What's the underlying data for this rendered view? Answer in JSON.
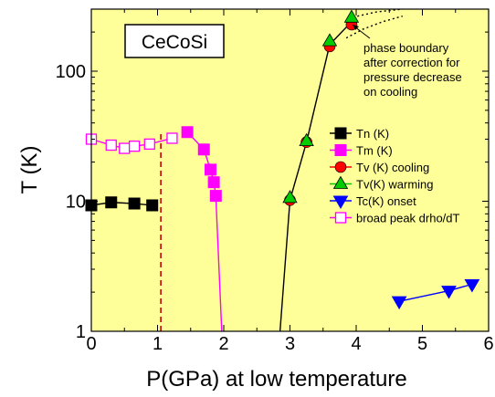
{
  "chart_data": {
    "type": "scatter",
    "inset_label": "CeCoSi",
    "xlabel": "P(GPa) at low temperature",
    "ylabel": "T (K)",
    "xlim": [
      0,
      6
    ],
    "ylim": [
      1,
      300
    ],
    "yscale": "log",
    "x_ticks": [
      0,
      1,
      2,
      3,
      4,
      5,
      6
    ],
    "y_ticks": [
      1,
      10,
      100
    ],
    "grid": false,
    "legend_position": "right",
    "background": "#ffff99",
    "annotation": {
      "lines": [
        "phase boundary",
        "after correction for",
        "pressure decrease",
        "on cooling"
      ]
    },
    "reference_line": {
      "x": 1.05,
      "color": "#cc0000",
      "style": "dashed"
    },
    "series": [
      {
        "name": "Tn (K)",
        "color": "#000000",
        "marker": "square-filled",
        "points": [
          [
            0.0,
            9.3
          ],
          [
            0.3,
            9.8
          ],
          [
            0.65,
            9.6
          ],
          [
            0.92,
            9.3
          ]
        ]
      },
      {
        "name": "Tm (K)",
        "color": "#ff00ff",
        "marker": "square-filled",
        "points": [
          [
            1.45,
            34.0
          ],
          [
            1.7,
            25.0
          ],
          [
            1.8,
            17.5
          ],
          [
            1.85,
            14.0
          ],
          [
            1.88,
            11.0
          ],
          [
            1.97,
            1.0
          ]
        ]
      },
      {
        "name": "Tv (K) cooling",
        "color": "#ff0000",
        "marker": "circle-filled",
        "points": [
          [
            3.0,
            10.2
          ],
          [
            3.25,
            28.5
          ],
          [
            3.6,
            155.0
          ],
          [
            3.93,
            228.0
          ]
        ]
      },
      {
        "name": "Tv(K) warming",
        "color": "#00cc00",
        "marker": "triangle-up-filled",
        "points": [
          [
            3.0,
            10.6
          ],
          [
            3.25,
            29.0
          ],
          [
            3.6,
            170.0
          ],
          [
            3.93,
            258.0
          ]
        ]
      },
      {
        "name": "Tc(K) onset",
        "color": "#0000ff",
        "marker": "triangle-down-filled",
        "points": [
          [
            4.65,
            1.7
          ],
          [
            5.4,
            2.05
          ],
          [
            5.75,
            2.3
          ]
        ]
      },
      {
        "name": "broad peak drho/dT",
        "color": "#ff00ff",
        "marker": "square-open",
        "points": [
          [
            0.0,
            30.0
          ],
          [
            0.3,
            27.0
          ],
          [
            0.5,
            25.5
          ],
          [
            0.65,
            26.5
          ],
          [
            0.88,
            27.5
          ],
          [
            1.22,
            30.5
          ]
        ]
      }
    ],
    "dotted_boundaries": [
      {
        "color": "#000000",
        "points": [
          [
            3.85,
            180.0
          ],
          [
            4.1,
            210.0
          ],
          [
            4.4,
            240.0
          ],
          [
            4.7,
            265.0
          ]
        ]
      },
      {
        "color": "#000000",
        "points": [
          [
            3.95,
            260.0
          ],
          [
            4.3,
            285.0
          ],
          [
            4.7,
            300.0
          ]
        ]
      }
    ],
    "solid_connectors": [
      {
        "color": "#000000",
        "points": [
          [
            2.85,
            1.0
          ],
          [
            3.0,
            10.2
          ],
          [
            3.25,
            28.5
          ],
          [
            3.6,
            160.0
          ],
          [
            3.93,
            240.0
          ]
        ]
      },
      {
        "color": "#ff00ff",
        "points": [
          [
            1.45,
            34.0
          ],
          [
            1.7,
            25.0
          ],
          [
            1.8,
            17.5
          ],
          [
            1.85,
            14.0
          ],
          [
            1.88,
            11.0
          ],
          [
            1.97,
            1.0
          ]
        ]
      },
      {
        "color": "#0000ff",
        "points": [
          [
            4.65,
            1.7
          ],
          [
            5.4,
            2.05
          ],
          [
            5.75,
            2.3
          ]
        ]
      },
      {
        "color": "#000000",
        "points": [
          [
            0.0,
            9.3
          ],
          [
            0.3,
            9.8
          ],
          [
            0.65,
            9.6
          ],
          [
            0.92,
            9.3
          ]
        ]
      },
      {
        "color": "#ff00ff",
        "points": [
          [
            0.0,
            30.0
          ],
          [
            0.3,
            27.0
          ],
          [
            0.5,
            25.5
          ],
          [
            0.65,
            26.5
          ],
          [
            0.88,
            27.5
          ],
          [
            1.22,
            30.5
          ]
        ]
      }
    ]
  }
}
